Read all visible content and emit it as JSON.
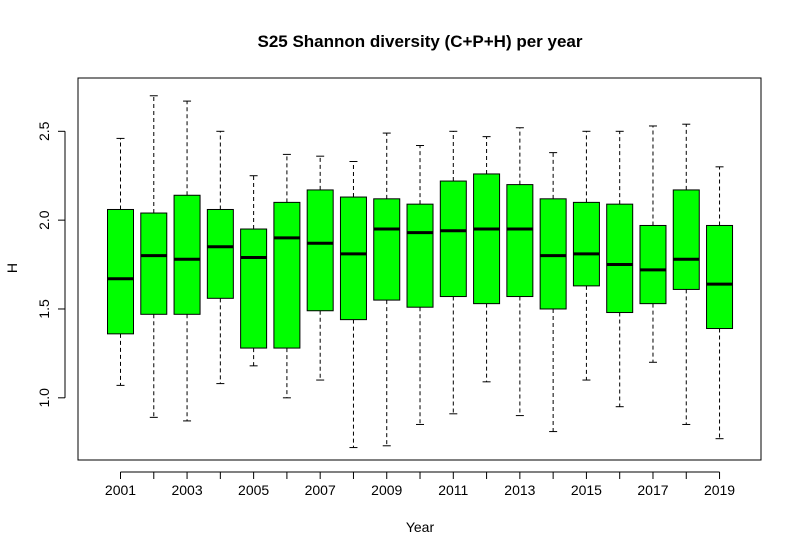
{
  "chart_data": {
    "type": "boxplot",
    "title": "S25 Shannon diversity (C+P+H) per year",
    "xlabel": "Year",
    "ylabel": "H",
    "ylim": [
      0.65,
      2.8
    ],
    "y_ticks": [
      "1.0",
      "1.5",
      "2.0",
      "2.5"
    ],
    "x_tick_labels": [
      "2001",
      "2003",
      "2005",
      "2007",
      "2009",
      "2011",
      "2013",
      "2015",
      "2017",
      "2019"
    ],
    "box_color": "#00ff00",
    "grid": false,
    "categories": [
      "2001",
      "2002",
      "2003",
      "2004",
      "2005",
      "2006",
      "2007",
      "2008",
      "2009",
      "2010",
      "2011",
      "2012",
      "2013",
      "2014",
      "2015",
      "2016",
      "2017",
      "2018",
      "2019"
    ],
    "boxes": [
      {
        "year": "2001",
        "min": 1.07,
        "q1": 1.36,
        "median": 1.67,
        "q3": 2.06,
        "max": 2.46
      },
      {
        "year": "2002",
        "min": 0.89,
        "q1": 1.47,
        "median": 1.8,
        "q3": 2.04,
        "max": 2.7
      },
      {
        "year": "2003",
        "min": 0.87,
        "q1": 1.47,
        "median": 1.78,
        "q3": 2.14,
        "max": 2.67
      },
      {
        "year": "2004",
        "min": 1.08,
        "q1": 1.56,
        "median": 1.85,
        "q3": 2.06,
        "max": 2.5
      },
      {
        "year": "2005",
        "min": 1.18,
        "q1": 1.28,
        "median": 1.79,
        "q3": 1.95,
        "max": 2.25
      },
      {
        "year": "2006",
        "min": 1.0,
        "q1": 1.28,
        "median": 1.9,
        "q3": 2.1,
        "max": 2.37
      },
      {
        "year": "2007",
        "min": 1.1,
        "q1": 1.49,
        "median": 1.87,
        "q3": 2.17,
        "max": 2.36
      },
      {
        "year": "2008",
        "min": 0.72,
        "q1": 1.44,
        "median": 1.81,
        "q3": 2.13,
        "max": 2.33
      },
      {
        "year": "2009",
        "min": 0.73,
        "q1": 1.55,
        "median": 1.95,
        "q3": 2.12,
        "max": 2.49
      },
      {
        "year": "2010",
        "min": 0.85,
        "q1": 1.51,
        "median": 1.93,
        "q3": 2.09,
        "max": 2.42
      },
      {
        "year": "2011",
        "min": 0.91,
        "q1": 1.57,
        "median": 1.94,
        "q3": 2.22,
        "max": 2.5
      },
      {
        "year": "2012",
        "min": 1.09,
        "q1": 1.53,
        "median": 1.95,
        "q3": 2.26,
        "max": 2.47
      },
      {
        "year": "2013",
        "min": 0.9,
        "q1": 1.57,
        "median": 1.95,
        "q3": 2.2,
        "max": 2.52
      },
      {
        "year": "2014",
        "min": 0.81,
        "q1": 1.5,
        "median": 1.8,
        "q3": 2.12,
        "max": 2.38
      },
      {
        "year": "2015",
        "min": 1.1,
        "q1": 1.63,
        "median": 1.81,
        "q3": 2.1,
        "max": 2.5
      },
      {
        "year": "2016",
        "min": 0.95,
        "q1": 1.48,
        "median": 1.75,
        "q3": 2.09,
        "max": 2.5
      },
      {
        "year": "2017",
        "min": 1.2,
        "q1": 1.53,
        "median": 1.72,
        "q3": 1.97,
        "max": 2.53
      },
      {
        "year": "2018",
        "min": 0.85,
        "q1": 1.61,
        "median": 1.78,
        "q3": 2.17,
        "max": 2.54
      },
      {
        "year": "2019",
        "min": 0.77,
        "q1": 1.39,
        "median": 1.64,
        "q3": 1.97,
        "max": 2.3
      }
    ]
  }
}
